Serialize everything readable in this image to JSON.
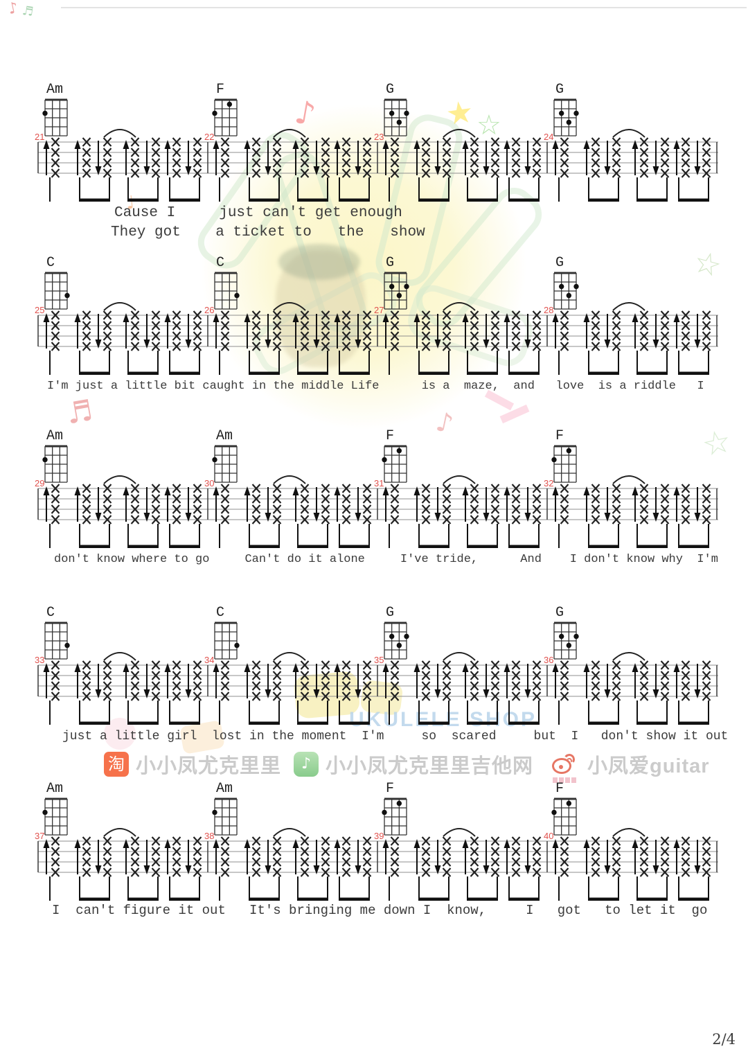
{
  "page": {
    "number": "2/4"
  },
  "strum_pattern": {
    "directions": [
      "up",
      "up",
      "down",
      "up",
      "down",
      "up",
      "down"
    ],
    "beam_groups": [
      [
        0
      ],
      [
        1,
        2
      ],
      [
        3,
        4
      ],
      [
        5,
        6
      ]
    ],
    "tie_between": [
      2,
      3
    ]
  },
  "chord_shapes": {
    "Am": [
      [
        1,
        2
      ]
    ],
    "F": [
      [
        1,
        2
      ],
      [
        3,
        1
      ]
    ],
    "G": [
      [
        2,
        2
      ],
      [
        3,
        3
      ],
      [
        4,
        2
      ]
    ],
    "C": [
      [
        4,
        3
      ]
    ]
  },
  "systems": [
    {
      "measures": [
        {
          "number": "21",
          "chord": "Am"
        },
        {
          "number": "22",
          "chord": "F"
        },
        {
          "number": "23",
          "chord": "G"
        },
        {
          "number": "24",
          "chord": "G"
        }
      ],
      "lyrics": [
        "Cause I     just can't get enough",
        "They got    a ticket to   the   show"
      ]
    },
    {
      "measures": [
        {
          "number": "25",
          "chord": "C"
        },
        {
          "number": "26",
          "chord": "C"
        },
        {
          "number": "27",
          "chord": "G"
        },
        {
          "number": "28",
          "chord": "G"
        }
      ],
      "lyrics": [
        "I'm just a little bit caught in the middle Life      is a  maze,  and   love  is a riddle   I"
      ]
    },
    {
      "measures": [
        {
          "number": "29",
          "chord": "Am"
        },
        {
          "number": "30",
          "chord": "Am"
        },
        {
          "number": "31",
          "chord": "F"
        },
        {
          "number": "32",
          "chord": "F"
        }
      ],
      "lyrics": [
        "don't know where to go     Can't do it alone     I've tride,      And    I don't know why  I'm"
      ]
    },
    {
      "measures": [
        {
          "number": "33",
          "chord": "C"
        },
        {
          "number": "34",
          "chord": "C"
        },
        {
          "number": "35",
          "chord": "G"
        },
        {
          "number": "36",
          "chord": "G"
        }
      ],
      "lyrics": [
        "just a little girl  lost in the moment  I'm     so  scared     but  I   don't show it out"
      ]
    },
    {
      "measures": [
        {
          "number": "37",
          "chord": "Am"
        },
        {
          "number": "38",
          "chord": "Am"
        },
        {
          "number": "39",
          "chord": "F"
        },
        {
          "number": "40",
          "chord": "F"
        }
      ],
      "lyrics": [
        "I  can't figure it out   It's bringing me down I  know,     I   got   to let it  go"
      ]
    }
  ],
  "watermark": {
    "shop_line": "UKULELE SHOP"
  },
  "footer": {
    "brands": [
      {
        "icon": "taobao-icon",
        "icon_glyph": "淘",
        "label": "小小凤尤克里里"
      },
      {
        "icon": "wechat-icon",
        "icon_glyph": "♪",
        "label": "小小凤尤克里里吉他网"
      },
      {
        "icon": "weibo-icon",
        "icon_glyph": "",
        "label": "小凤爱guitar"
      }
    ]
  }
}
